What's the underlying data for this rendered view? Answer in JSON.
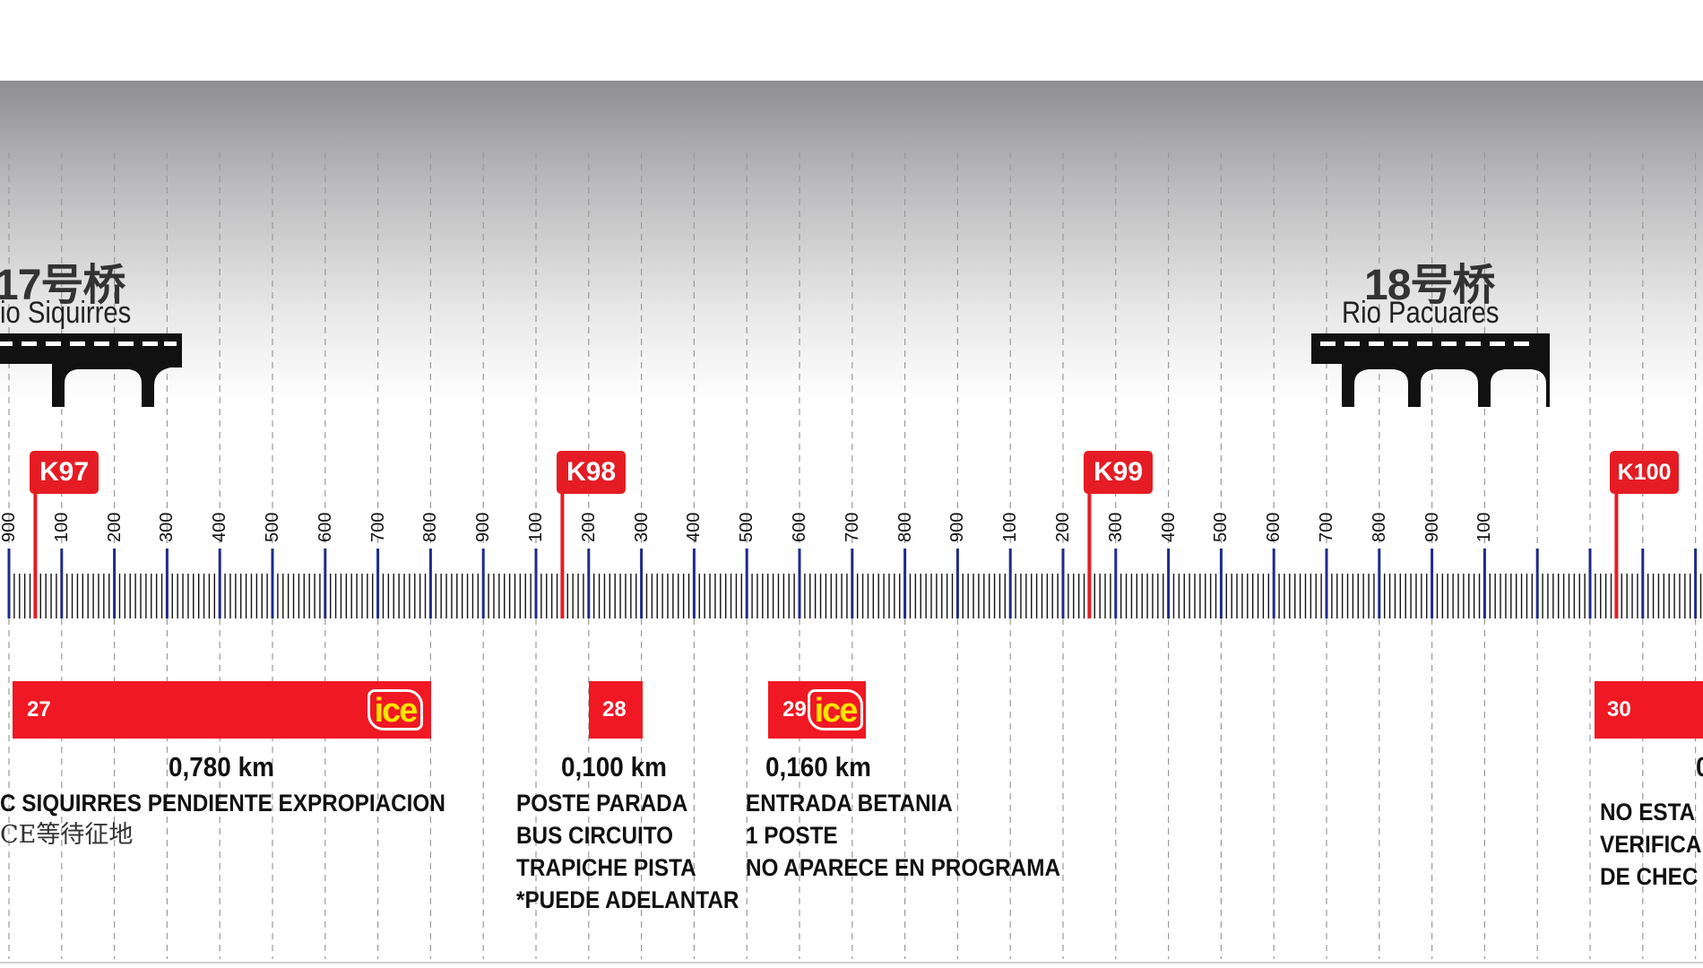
{
  "bridges": [
    {
      "title": "17号桥",
      "subtitle": "io Siquirres"
    },
    {
      "title": "18号桥",
      "subtitle": "Rio Pacuares"
    }
  ],
  "km_markers": [
    "K97",
    "K98",
    "K99",
    "K100"
  ],
  "hundred_labels": [
    "900",
    "100",
    "200",
    "300",
    "400",
    "500",
    "600",
    "700",
    "800",
    "900",
    "100",
    "200",
    "300",
    "400",
    "500",
    "600",
    "700",
    "800",
    "900",
    "100",
    "200",
    "300",
    "400",
    "500",
    "600",
    "700",
    "800",
    "900",
    "100"
  ],
  "segments": [
    {
      "number": "27",
      "logo": "ice",
      "distance": "0,780 km",
      "notes": [
        "C SIQUIRRES PENDIENTE EXPROPIACION"
      ],
      "note_cn": "CE等待征地"
    },
    {
      "number": "28",
      "logo": "",
      "distance": "0,100 km",
      "notes": [
        "POSTE PARADA",
        "BUS CIRCUITO",
        "TRAPICHE PISTA",
        "*PUEDE ADELANTAR"
      ]
    },
    {
      "number": "29",
      "logo": "ice",
      "distance": "0,160 km",
      "notes": [
        "ENTRADA BETANIA",
        "1 POSTE",
        "NO APARECE EN PROGRAMA"
      ]
    },
    {
      "number": "30",
      "logo": "",
      "distance": "0",
      "notes": [
        "NO ESTA",
        "VERIFICA",
        "DE CHEC"
      ]
    }
  ],
  "colors": {
    "marker_red": "#e51c24",
    "segment_red": "#f01823",
    "hundred_tick": "#1f2a8a",
    "ice_yellow": "#ffe400"
  },
  "icons": {
    "bridge": "bridge-icon",
    "ice": "ice-logo"
  }
}
